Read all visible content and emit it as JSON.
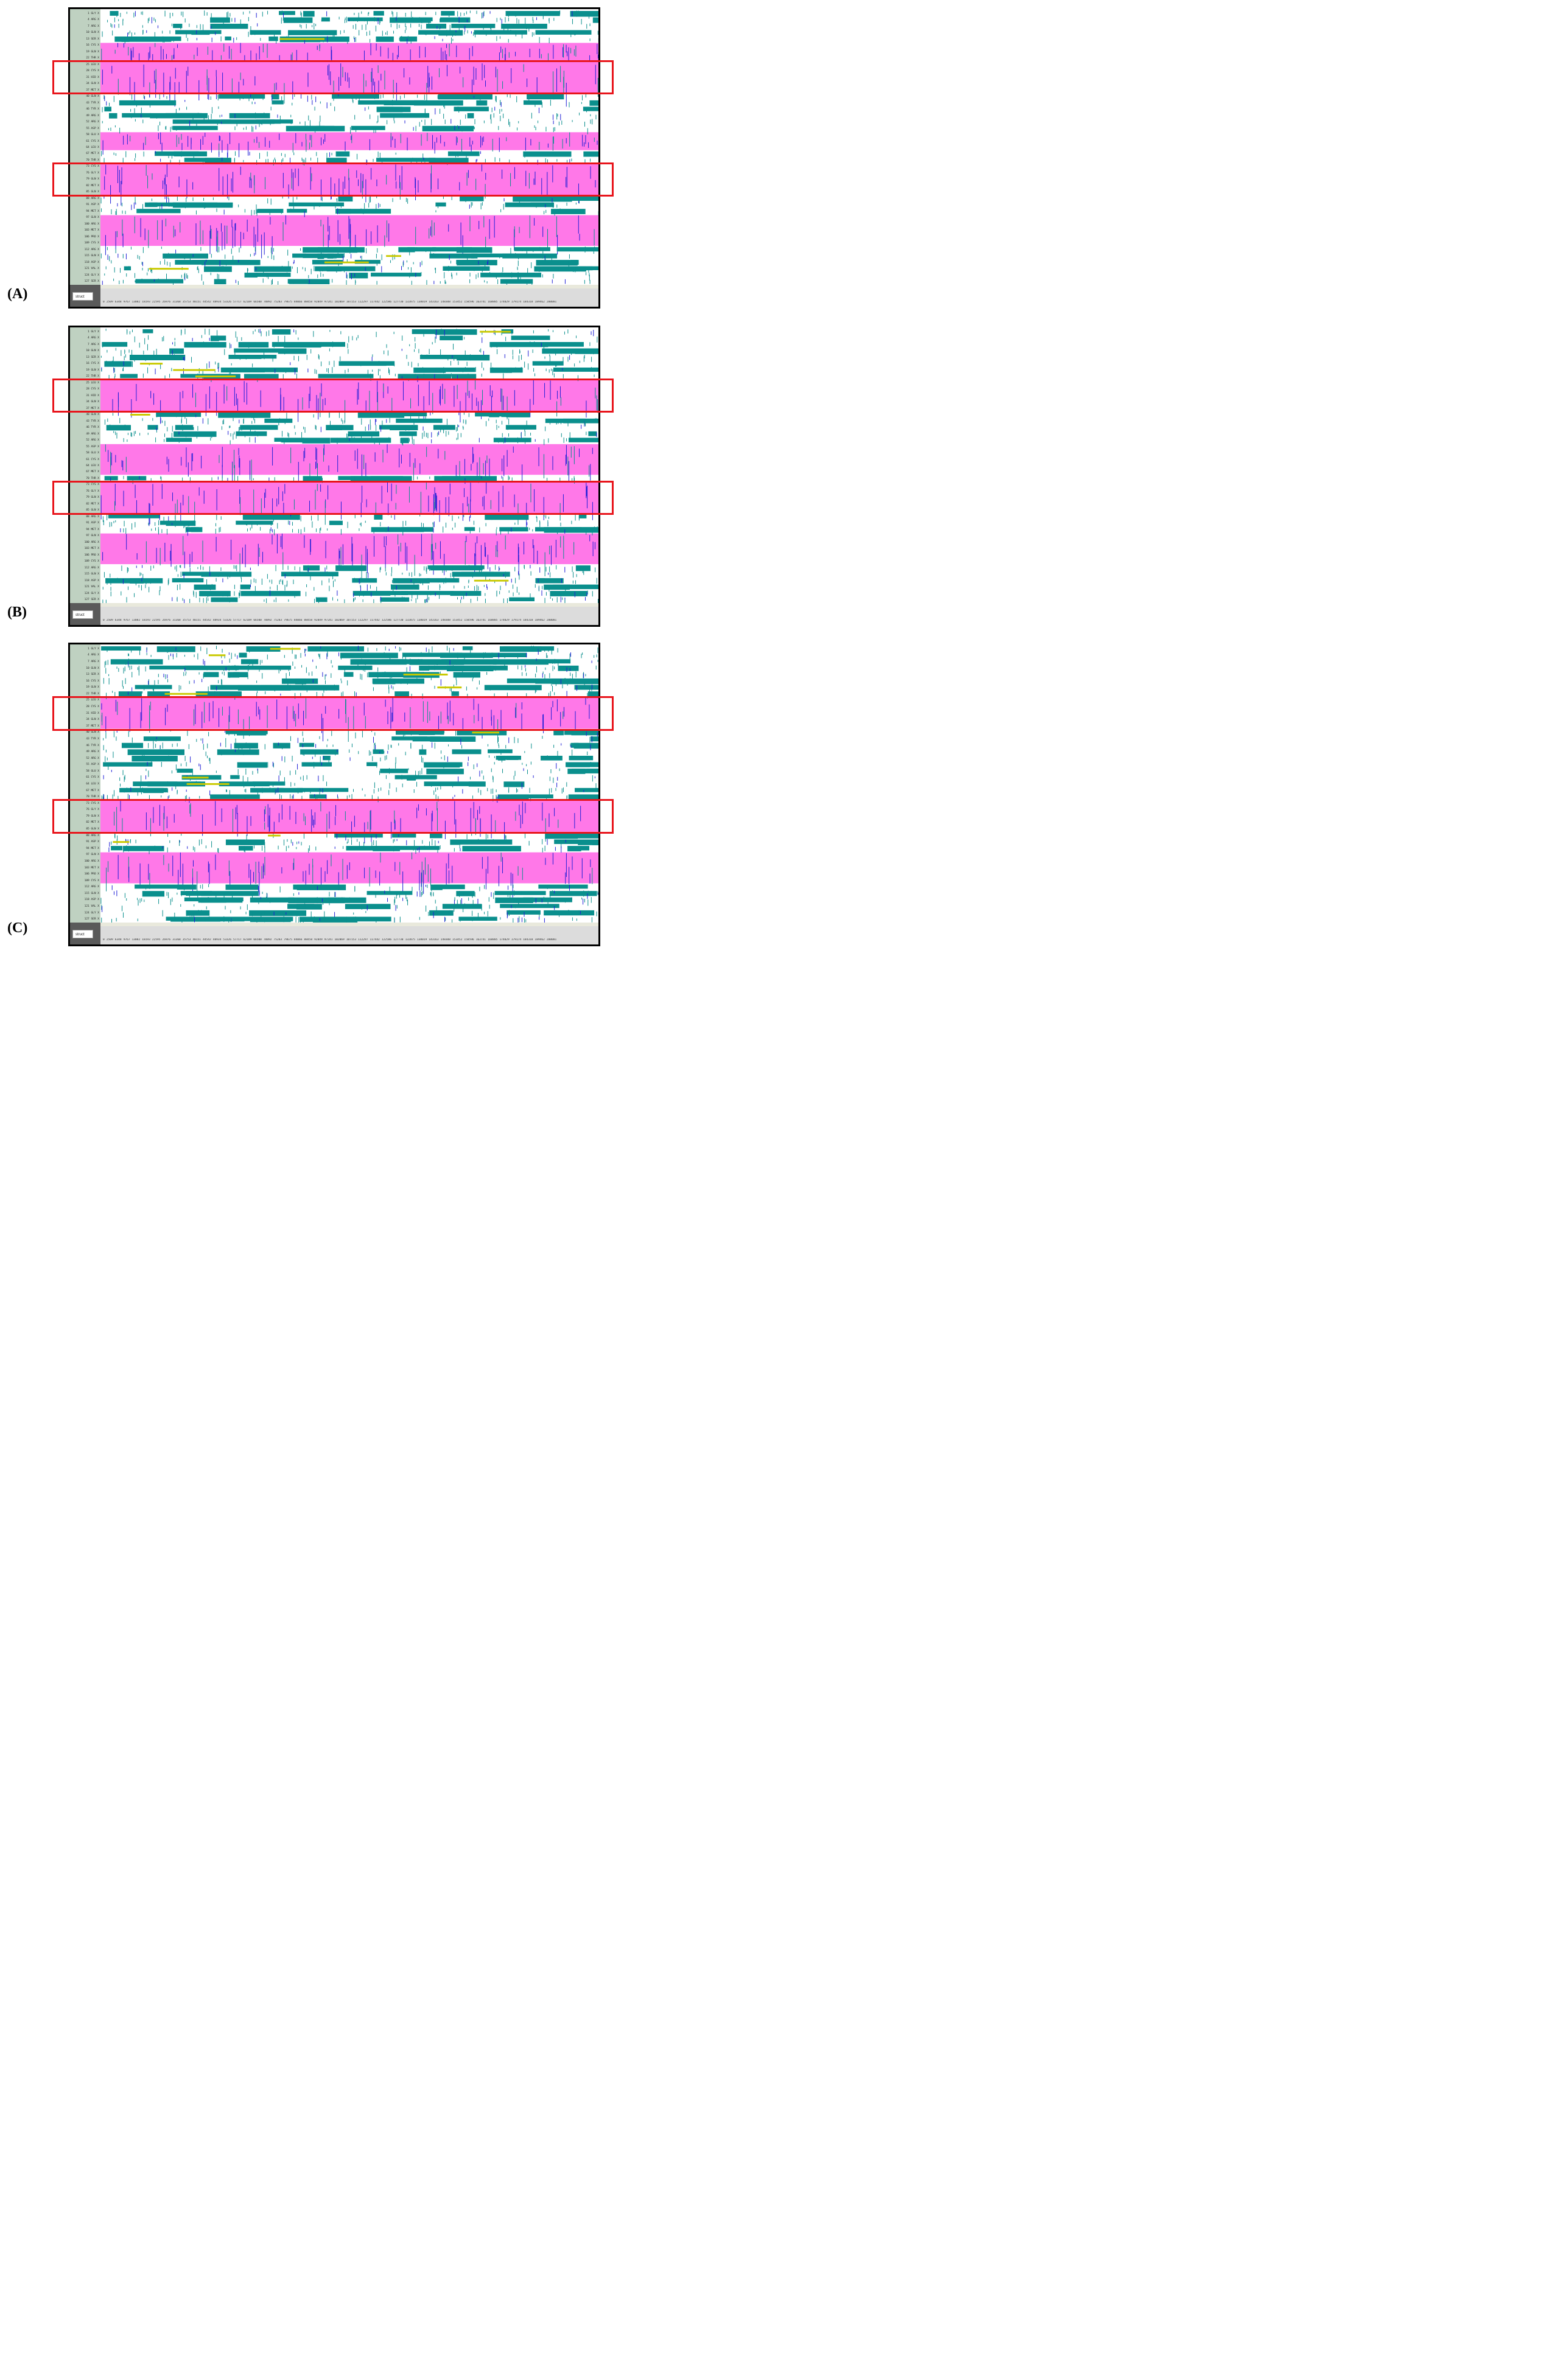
{
  "chart_data": [
    {
      "type": "heatmap",
      "panel_label": "(A)",
      "y_labels": [
        "1 GLY X",
        "4 ARG X",
        "7 ARG X",
        "10 GLN X",
        "13 SER X",
        "16 CYS X",
        "19 GLN X",
        "22 THR X",
        "25 LEU X",
        "28 CYS X",
        "31 HID X",
        "34 GLN X",
        "37 MET X",
        "40 GLN X",
        "43 TYR X",
        "46 TYR X",
        "49 ARG X",
        "52 ARG X",
        "55 ASP X",
        "58 GLU X",
        "61 CYS X",
        "64 LEU X",
        "67 MET X",
        "70 THR X",
        "73 CYS X",
        "76 GLY X",
        "79 GLN X",
        "82 MET X",
        "85 GLN X",
        "88 ARG X",
        "91 ASP X",
        "94 MET X",
        "97 GLN X",
        "100 ARG X",
        "103 MET X",
        "106 PRO X",
        "109 CYS X",
        "112 ARG X",
        "115 GLN X",
        "118 ASP X",
        "121 VAL X",
        "124 GLY X",
        "127 SER X"
      ],
      "x_ticks": [
        "0",
        "2509",
        "6348",
        "9767",
        "13082",
        "18193",
        "22595",
        "26976",
        "31368",
        "35753",
        "40151",
        "44542",
        "48934",
        "53326",
        "57717",
        "62109",
        "66500",
        "70892",
        "75283",
        "79675",
        "84066",
        "88458",
        "92849",
        "97241",
        "102069",
        "107153",
        "112297",
        "117442",
        "122586",
        "127730",
        "132875",
        "138019",
        "143163",
        "148308",
        "153452",
        "158596",
        "163741",
        "168885",
        "174029",
        "179174",
        "184318",
        "189462",
        "200001"
      ],
      "bottom_button": "struct",
      "legend_colors": {
        "helix": "#ff78e8",
        "turn": "#0a8f8d",
        "3-10 helix": "#1f1fd6",
        "bridge": "#c9c900",
        "coil": "#ffffff"
      },
      "highlighted_residue_ranges": [
        [
          "25 LEU X",
          "37 MET X"
        ],
        [
          "73 CYS X",
          "85 GLN X"
        ]
      ]
    },
    {
      "type": "heatmap",
      "panel_label": "(B)",
      "y_labels": [
        "1 GLY X",
        "4 ARG X",
        "7 ARG X",
        "10 GLN X",
        "13 SER X",
        "16 CYS X",
        "19 GLN X",
        "22 THR X",
        "25 LEU X",
        "28 CYS X",
        "31 HID X",
        "34 GLN X",
        "37 MET X",
        "40 GLN X",
        "43 TYR X",
        "46 TYR X",
        "49 ARG X",
        "52 ARG X",
        "55 ASP X",
        "58 GLU X",
        "61 CYS X",
        "64 LEU X",
        "67 MET X",
        "70 THR X",
        "73 CYS X",
        "76 GLY X",
        "79 GLN X",
        "82 MET X",
        "85 GLN X",
        "88 ARG X",
        "91 ASP X",
        "94 MET X",
        "97 GLN X",
        "100 ARG X",
        "103 MET X",
        "106 PRO X",
        "109 CYS X",
        "112 ARG X",
        "115 GLN X",
        "118 ASP X",
        "121 VAL X",
        "124 GLY X",
        "127 SER X"
      ],
      "x_ticks": [
        "0",
        "2509",
        "6348",
        "9767",
        "13082",
        "18193",
        "22595",
        "26976",
        "31368",
        "35753",
        "40151",
        "44542",
        "48934",
        "53326",
        "57717",
        "62109",
        "66500",
        "70892",
        "75283",
        "79675",
        "84066",
        "88458",
        "92849",
        "97241",
        "102069",
        "107153",
        "112297",
        "117442",
        "122586",
        "127730",
        "132875",
        "138019",
        "143163",
        "148308",
        "153452",
        "158596",
        "163741",
        "168885",
        "174029",
        "179174",
        "184318",
        "189462",
        "200001"
      ],
      "bottom_button": "struct",
      "highlighted_residue_ranges": [
        [
          "25 LEU X",
          "37 MET X"
        ],
        [
          "73 CYS X",
          "85 GLN X"
        ]
      ]
    },
    {
      "type": "heatmap",
      "panel_label": "(C)",
      "y_labels": [
        "1 GLY X",
        "4 ARG X",
        "7 ARG X",
        "10 GLN X",
        "13 SER X",
        "16 CYS X",
        "19 GLN X",
        "22 THR X",
        "25 LEU X",
        "28 CYS X",
        "31 HID X",
        "34 GLN X",
        "37 MET X",
        "40 GLN X",
        "43 TYR X",
        "46 TYR X",
        "49 ARG X",
        "52 ARG X",
        "55 ASP X",
        "58 GLU X",
        "61 CYS X",
        "64 LEU X",
        "67 MET X",
        "70 THR X",
        "73 CYS X",
        "76 GLY X",
        "79 GLN X",
        "82 MET X",
        "85 GLN X",
        "88 ARG X",
        "91 ASP X",
        "94 MET X",
        "97 GLN X",
        "100 ARG X",
        "103 MET X",
        "106 PRO X",
        "109 CYS X",
        "112 ARG X",
        "115 GLN X",
        "118 ASP X",
        "121 VAL X",
        "124 GLY X",
        "127 SER X"
      ],
      "x_ticks": [
        "0",
        "2509",
        "6348",
        "9767",
        "13082",
        "18193",
        "22595",
        "26976",
        "31368",
        "35753",
        "40151",
        "44542",
        "48934",
        "53326",
        "57717",
        "62109",
        "66500",
        "70892",
        "75283",
        "79675",
        "84066",
        "88458",
        "92849",
        "97241",
        "102069",
        "107153",
        "112297",
        "117442",
        "122586",
        "127730",
        "132875",
        "138019",
        "143163",
        "148308",
        "153452",
        "158596",
        "163741",
        "168885",
        "174029",
        "179174",
        "184318",
        "189462",
        "200001"
      ],
      "bottom_button": "struct",
      "highlighted_residue_ranges": [
        [
          "25 LEU X",
          "37 MET X"
        ],
        [
          "73 CYS X",
          "85 GLN X"
        ]
      ]
    }
  ]
}
